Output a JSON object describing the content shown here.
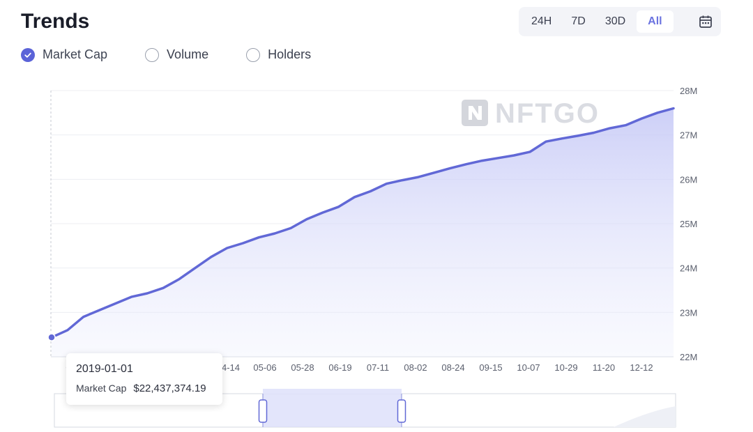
{
  "header": {
    "title": "Trends"
  },
  "range_buttons": [
    {
      "label": "24H",
      "active": false
    },
    {
      "label": "7D",
      "active": false
    },
    {
      "label": "30D",
      "active": false
    },
    {
      "label": "All",
      "active": true
    }
  ],
  "calendar_icon": "calendar-icon",
  "metrics": [
    {
      "label": "Market Cap",
      "checked": true
    },
    {
      "label": "Volume",
      "checked": false
    },
    {
      "label": "Holders",
      "checked": false
    }
  ],
  "watermark": "NFTGO",
  "colors": {
    "line": "#6168d6",
    "fill": "#c9ccf7",
    "accent": "#5b63d8",
    "grid": "#eceef2"
  },
  "tooltip": {
    "date": "2019-01-01",
    "label": "Market Cap",
    "value": "$22,437,374.19"
  },
  "chart_data": {
    "type": "area",
    "title": "",
    "xlabel": "",
    "ylabel": "",
    "ylim": [
      22000000,
      28000000
    ],
    "y_ticks": [
      "22M",
      "23M",
      "24M",
      "25M",
      "26M",
      "27M",
      "28M"
    ],
    "x_ticks": [
      "0",
      "4-14",
      "05-06",
      "05-28",
      "06-19",
      "07-11",
      "08-02",
      "08-24",
      "09-15",
      "10-07",
      "10-29",
      "11-20",
      "12-12"
    ],
    "grid": true,
    "series": [
      {
        "values": [
          {
            "x": "2019-01-01",
            "y": 22437374
          },
          {
            "x": "2019-01-12",
            "y": 22600000
          },
          {
            "x": "2019-01-23",
            "y": 22900000
          },
          {
            "x": "2019-02-03",
            "y": 23050000
          },
          {
            "x": "2019-02-14",
            "y": 23200000
          },
          {
            "x": "2019-02-25",
            "y": 23350000
          },
          {
            "x": "2019-03-08",
            "y": 23430000
          },
          {
            "x": "2019-03-19",
            "y": 23550000
          },
          {
            "x": "2019-03-30",
            "y": 23750000
          },
          {
            "x": "2019-04-10",
            "y": 24000000
          },
          {
            "x": "2019-04-21",
            "y": 24250000
          },
          {
            "x": "2019-05-02",
            "y": 24450000
          },
          {
            "x": "2019-05-13",
            "y": 24560000
          },
          {
            "x": "2019-05-24",
            "y": 24690000
          },
          {
            "x": "2019-06-04",
            "y": 24780000
          },
          {
            "x": "2019-06-15",
            "y": 24900000
          },
          {
            "x": "2019-06-26",
            "y": 25100000
          },
          {
            "x": "2019-07-07",
            "y": 25250000
          },
          {
            "x": "2019-07-18",
            "y": 25380000
          },
          {
            "x": "2019-07-29",
            "y": 25600000
          },
          {
            "x": "2019-08-09",
            "y": 25730000
          },
          {
            "x": "2019-08-20",
            "y": 25900000
          },
          {
            "x": "2019-08-31",
            "y": 25980000
          },
          {
            "x": "2019-09-11",
            "y": 26050000
          },
          {
            "x": "2019-09-22",
            "y": 26150000
          },
          {
            "x": "2019-10-03",
            "y": 26250000
          },
          {
            "x": "2019-10-14",
            "y": 26340000
          },
          {
            "x": "2019-10-25",
            "y": 26420000
          },
          {
            "x": "2019-11-05",
            "y": 26480000
          },
          {
            "x": "2019-11-16",
            "y": 26540000
          },
          {
            "x": "2019-11-27",
            "y": 26620000
          },
          {
            "x": "2019-12-08",
            "y": 26850000
          },
          {
            "x": "2019-12-19",
            "y": 26920000
          },
          {
            "x": "2019-12-30",
            "y": 26980000
          },
          {
            "x": "2020-01-10",
            "y": 27050000
          },
          {
            "x": "2020-01-21",
            "y": 27150000
          },
          {
            "x": "2020-02-01",
            "y": 27220000
          },
          {
            "x": "2020-02-12",
            "y": 27370000
          },
          {
            "x": "2020-02-23",
            "y": 27500000
          },
          {
            "x": "2020-03-05",
            "y": 27600000
          }
        ]
      }
    ]
  }
}
